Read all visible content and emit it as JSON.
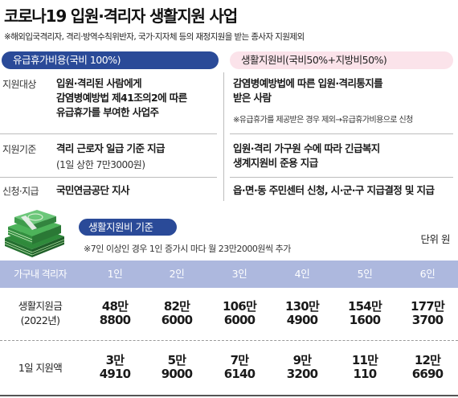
{
  "title": "코로나19 입원·격리자 생활지원 사업",
  "subtitle": "※해외입국격리자, 격리·방역수칙위반자, 국가·지자체 등의 재정지원을 받는 종사자 지원제외",
  "paid_leave": {
    "header": "유급휴가비용(국비 100%)",
    "rows": [
      {
        "label": "지원대상",
        "lines": [
          "입원·격리된 사람에게",
          "감염병예방법 제41조의2에 따른",
          "유급휴가를 부여한 사업주"
        ]
      },
      {
        "label": "지원기준",
        "lines": [
          "격리 근로자 일급 기준 지급"
        ],
        "note": "(1일 상한 7만3000원)"
      },
      {
        "label": "신청·지급",
        "lines": [
          "국민연금공단 지사"
        ]
      }
    ]
  },
  "living_support": {
    "header": "생활지원비(국비50%+지방비50%)",
    "rows": [
      {
        "lines": [
          "감염병예방법에 따른 입원·격리통지를",
          "받은 사람"
        ],
        "note": "※유급휴가를 제공받은 경우 제외→유급휴가비용으로 신청"
      },
      {
        "lines": [
          "입원·격리 가구원 수에 따라 긴급복지",
          "생계지원비 준용 지급"
        ]
      },
      {
        "lines": [
          "읍·면·동 주민센터 신청, 시·군·구 지급결정 및 지급"
        ]
      }
    ]
  },
  "standard": {
    "header": "생활지원비 기준",
    "unit": "단위 원",
    "note": "※7인 이상인 경우 1인 증가시 마다 월 23만2000원씩 추가",
    "col_header": "가구내 격리자",
    "columns": [
      "1인",
      "2인",
      "3인",
      "4인",
      "5인",
      "6인"
    ],
    "rows": [
      {
        "label": [
          "생활지원금",
          "(2022년)"
        ],
        "values": [
          [
            "48만",
            "8800"
          ],
          [
            "82만",
            "6000"
          ],
          [
            "106만",
            "6000"
          ],
          [
            "130만",
            "4900"
          ],
          [
            "154만",
            "1600"
          ],
          [
            "177만",
            "3700"
          ]
        ]
      },
      {
        "label": [
          "1일 지원액"
        ],
        "values": [
          [
            "3만",
            "4910"
          ],
          [
            "5만",
            "9000"
          ],
          [
            "7만",
            "6140"
          ],
          [
            "9만",
            "3200"
          ],
          [
            "11만",
            "110"
          ],
          [
            "12만",
            "6690"
          ]
        ]
      }
    ]
  },
  "colors": {
    "navy": "#2a4a98",
    "pink": "#fbe3ea",
    "header_band": "#adb8de",
    "money_green": "#3fa54a"
  },
  "icons": {
    "money": "money-stack-icon"
  }
}
